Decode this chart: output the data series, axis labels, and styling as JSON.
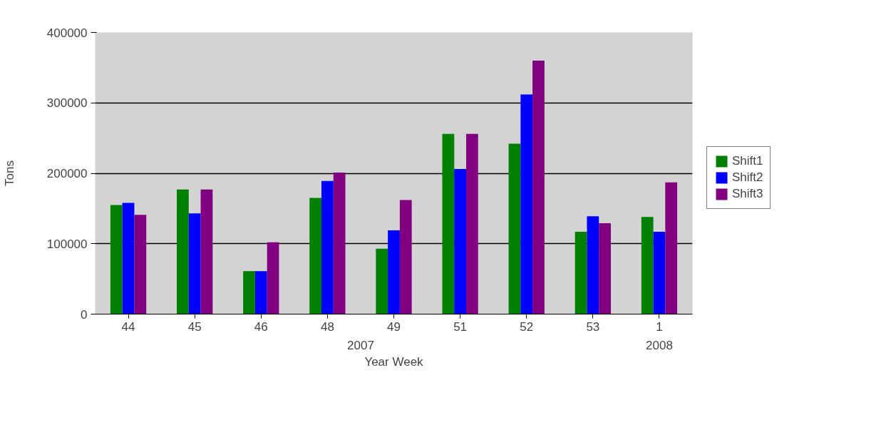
{
  "chart_data": {
    "type": "bar",
    "xlabel": "Year Week",
    "ylabel": "Tons",
    "categories": [
      "44",
      "45",
      "46",
      "48",
      "49",
      "51",
      "52",
      "53",
      "1"
    ],
    "series": [
      {
        "name": "Shift1",
        "color": "#008000",
        "values": [
          155000,
          177000,
          61000,
          165000,
          93000,
          256000,
          242000,
          117000,
          138000
        ]
      },
      {
        "name": "Shift2",
        "color": "#0000ff",
        "values": [
          158000,
          143000,
          61000,
          189000,
          119000,
          206000,
          312000,
          139000,
          117000
        ]
      },
      {
        "name": "Shift3",
        "color": "#800080",
        "values": [
          141000,
          177000,
          102000,
          201000,
          162000,
          256000,
          360000,
          129000,
          187000
        ]
      }
    ],
    "ylim": [
      0,
      400000
    ],
    "yticks": [
      0,
      100000,
      200000,
      300000,
      400000
    ],
    "grid": "y",
    "legend": "right",
    "annotations": [
      "2007",
      "2008"
    ]
  }
}
